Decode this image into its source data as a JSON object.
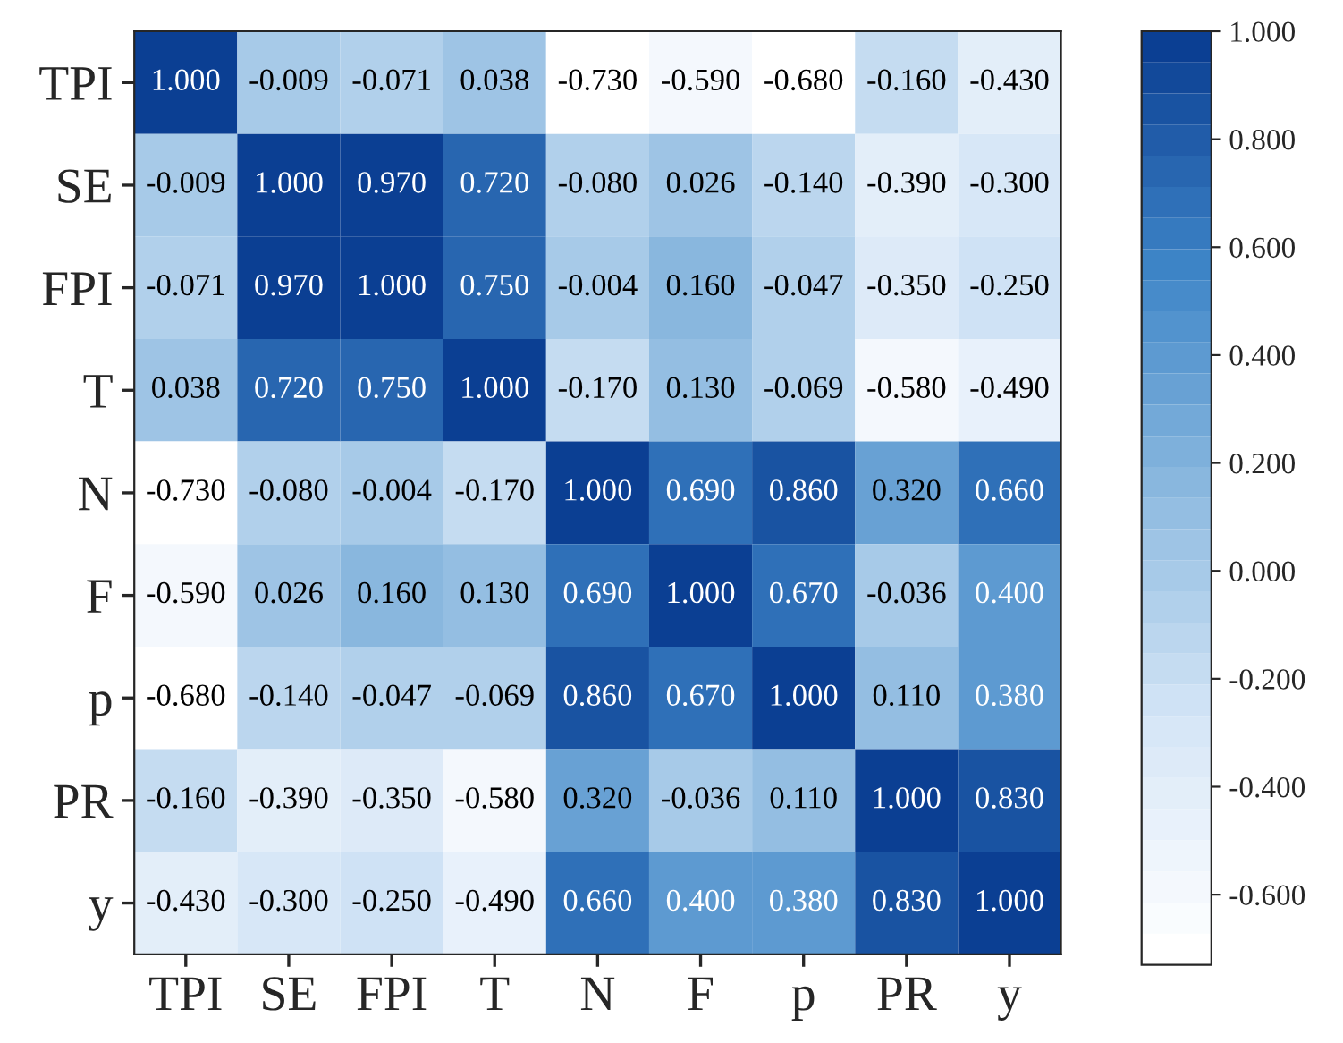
{
  "chart_data": {
    "type": "heatmap",
    "categories": [
      "TPI",
      "SE",
      "FPI",
      "T",
      "N",
      "F",
      "p",
      "PR",
      "y"
    ],
    "y_categories": [
      "TPI",
      "SE",
      "FPI",
      "T",
      "N",
      "F",
      "p",
      "PR",
      "y"
    ],
    "cells": [
      [
        1.0,
        -0.009,
        -0.071,
        0.038,
        -0.73,
        -0.59,
        -0.68,
        -0.16,
        -0.43
      ],
      [
        -0.009,
        1.0,
        0.97,
        0.72,
        -0.08,
        0.026,
        -0.14,
        -0.39,
        -0.3
      ],
      [
        -0.071,
        0.97,
        1.0,
        0.75,
        -0.004,
        0.16,
        -0.047,
        -0.35,
        -0.25
      ],
      [
        0.038,
        0.72,
        0.75,
        1.0,
        -0.17,
        0.13,
        -0.069,
        -0.58,
        -0.49
      ],
      [
        -0.73,
        -0.08,
        -0.004,
        -0.17,
        1.0,
        0.69,
        0.86,
        0.32,
        0.66
      ],
      [
        -0.59,
        0.026,
        0.16,
        0.13,
        0.69,
        1.0,
        0.67,
        -0.036,
        0.4
      ],
      [
        -0.68,
        -0.14,
        -0.047,
        -0.069,
        0.86,
        0.67,
        1.0,
        0.11,
        0.38
      ],
      [
        -0.16,
        -0.39,
        -0.35,
        -0.58,
        0.32,
        -0.036,
        0.11,
        1.0,
        0.83
      ],
      [
        -0.43,
        -0.3,
        -0.25,
        -0.49,
        0.66,
        0.4,
        0.38,
        0.83,
        1.0
      ]
    ],
    "cell_labels": [
      [
        "1.000",
        "-0.009",
        "-0.071",
        "0.038",
        "-0.730",
        "-0.590",
        "-0.680",
        "-0.160",
        "-0.430"
      ],
      [
        "-0.009",
        "1.000",
        "0.970",
        "0.720",
        "-0.080",
        "0.026",
        "-0.140",
        "-0.390",
        "-0.300"
      ],
      [
        "-0.071",
        "0.970",
        "1.000",
        "0.750",
        "-0.004",
        "0.160",
        "-0.047",
        "-0.350",
        "-0.250"
      ],
      [
        "0.038",
        "0.720",
        "0.750",
        "1.000",
        "-0.170",
        "0.130",
        "-0.069",
        "-0.580",
        "-0.490"
      ],
      [
        "-0.730",
        "-0.080",
        "-0.004",
        "-0.170",
        "1.000",
        "0.690",
        "0.860",
        "0.320",
        "0.660"
      ],
      [
        "-0.590",
        "0.026",
        "0.160",
        "0.130",
        "0.690",
        "1.000",
        "0.670",
        "-0.036",
        "0.400"
      ],
      [
        "-0.680",
        "-0.140",
        "-0.047",
        "-0.069",
        "0.860",
        "0.670",
        "1.000",
        "0.110",
        "0.380"
      ],
      [
        "-0.160",
        "-0.390",
        "-0.350",
        "-0.580",
        "0.320",
        "-0.036",
        "0.110",
        "1.000",
        "0.830"
      ],
      [
        "-0.430",
        "-0.300",
        "-0.250",
        "-0.490",
        "0.660",
        "0.400",
        "0.380",
        "0.830",
        "1.000"
      ]
    ],
    "clim": [
      -0.73,
      1.0
    ],
    "cticks": [
      {
        "value": -0.6,
        "label": "-0.600"
      },
      {
        "value": -0.4,
        "label": "-0.400"
      },
      {
        "value": -0.2,
        "label": "-0.200"
      },
      {
        "value": 0.0,
        "label": "0.000"
      },
      {
        "value": 0.2,
        "label": "0.200"
      },
      {
        "value": 0.4,
        "label": "0.400"
      },
      {
        "value": 0.6,
        "label": "0.600"
      },
      {
        "value": 0.8,
        "label": "0.800"
      },
      {
        "value": 1.0,
        "label": "1.000"
      }
    ],
    "colors": [
      "#ffffff",
      "#d6e6f7",
      "#8fbbe0",
      "#3f86c8",
      "#0b3f93"
    ],
    "grid": false
  }
}
